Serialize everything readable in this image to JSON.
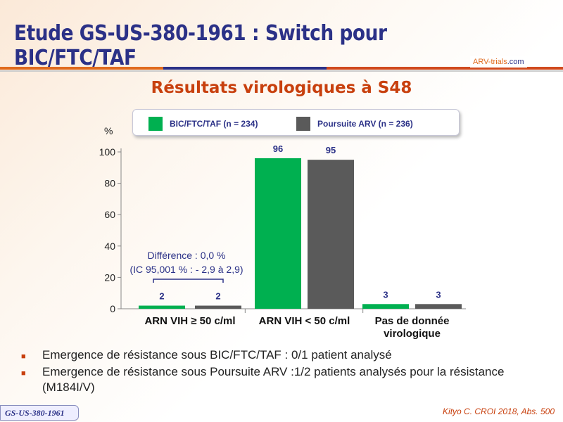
{
  "title": "Etude GS-US-380-1961 : Switch pour BIC/FTC/TAF",
  "logo": {
    "a": "ARV-trials",
    "b": ".com"
  },
  "footer": "GS-US-380-1961",
  "citation": "Kityo C. CROI 2018, Abs. 500",
  "notes": [
    "Emergence de résistance sous BIC/FTC/TAF  : 0/1 patient analysé",
    "Emergence de résistance sous Poursuite ARV :1/2 patients analysés pour la résistance (M184I/V)"
  ],
  "annotation": {
    "line1": "Différence : 0,0 %",
    "line2": "(IC 95,001 %  : - 2,9 à 2,9)"
  },
  "chart_data": {
    "type": "bar",
    "title": "Résultats virologiques à S48",
    "ylabel": "%",
    "ylim": [
      0,
      100
    ],
    "yticks": [
      0,
      20,
      40,
      60,
      80,
      100
    ],
    "categories": [
      "ARN VIH ≥ 50 c/ml",
      "ARN VIH < 50 c/ml",
      "Pas de donnée virologique"
    ],
    "series": [
      {
        "name": "BIC/FTC/TAF (n = 234)",
        "color": "#00b050",
        "values": [
          2,
          96,
          3
        ]
      },
      {
        "name": "Poursuite ARV (n = 236)",
        "color": "#5a5a5a",
        "values": [
          2,
          95,
          3
        ]
      }
    ],
    "legend": "top"
  }
}
